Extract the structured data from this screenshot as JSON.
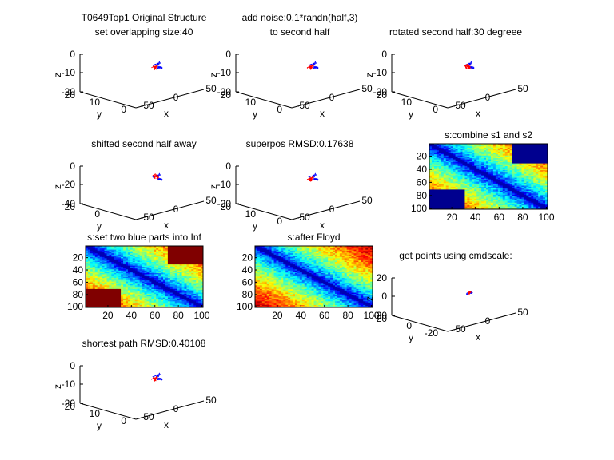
{
  "colors": {
    "chain_a": "#0000ff",
    "chain_b": "#ff0000",
    "axis": "#000000",
    "inf_block_high": "#800000",
    "inf_block_low": "#00008f"
  },
  "chart_data": [
    {
      "type": "scatter3d",
      "title": [
        "T0649Top1 Original Structure",
        "set overlapping size:40"
      ],
      "xlabel": "x",
      "ylabel": "y",
      "zlabel": "z",
      "xticks": [
        "-50",
        "0",
        "50"
      ],
      "yticks": [
        "0",
        "10",
        "20"
      ],
      "zticks": [
        "0",
        "-10",
        "-20"
      ],
      "series": [
        {
          "color": "#0000ff"
        },
        {
          "color": "#ff0000"
        }
      ],
      "points": 100,
      "seed": 3,
      "rotation": 0,
      "shift": 0,
      "noise": 0
    },
    {
      "type": "scatter3d",
      "title": [
        "add noise:0.1*randn(half,3)",
        "to second half"
      ],
      "xlabel": "x",
      "ylabel": "y",
      "zlabel": "z",
      "xticks": [
        "-50",
        "0",
        "50"
      ],
      "yticks": [
        "0",
        "10",
        "20"
      ],
      "zticks": [
        "0",
        "-10",
        "-20"
      ],
      "series": [
        {
          "color": "#0000ff"
        },
        {
          "color": "#ff0000"
        }
      ],
      "points": 100,
      "seed": 3,
      "rotation": 0,
      "shift": 0,
      "noise": 0.1
    },
    {
      "type": "scatter3d",
      "title": [
        "rotated second half:30 degreee"
      ],
      "xlabel": "x",
      "ylabel": "y",
      "zlabel": "z",
      "xticks": [
        "-50",
        "0",
        "50"
      ],
      "yticks": [
        "0",
        "10",
        "20"
      ],
      "zticks": [
        "0",
        "-10",
        "-20"
      ],
      "series": [
        {
          "color": "#0000ff"
        },
        {
          "color": "#ff0000"
        }
      ],
      "points": 100,
      "seed": 3,
      "rotation": 30,
      "shift": 0,
      "noise": 0.1
    },
    {
      "type": "scatter3d",
      "title": [
        "shifted second half away"
      ],
      "xlabel": "x",
      "ylabel": "y",
      "zlabel": "z",
      "xticks": [
        "-50",
        "0",
        "50"
      ],
      "yticks": [
        "0",
        "20"
      ],
      "zticks": [
        "0",
        "-20",
        "-40"
      ],
      "series": [
        {
          "color": "#0000ff"
        },
        {
          "color": "#ff0000"
        }
      ],
      "points": 100,
      "seed": 3,
      "rotation": 30,
      "shift": 1,
      "noise": 0.1
    },
    {
      "type": "scatter3d",
      "title": [
        "superpos RMSD:0.17638"
      ],
      "xlabel": "x",
      "ylabel": "y",
      "zlabel": "z",
      "xticks": [
        "-50",
        "0",
        "50"
      ],
      "yticks": [
        "0",
        "10",
        "20"
      ],
      "zticks": [
        "0",
        "-10",
        "-20"
      ],
      "series": [
        {
          "color": "#0000ff"
        },
        {
          "color": "#ff0000"
        }
      ],
      "points": 100,
      "seed": 3,
      "rotation": 0,
      "shift": 0,
      "noise": 0.1
    },
    {
      "type": "heatmap",
      "title": [
        "s:combine s1 and s2"
      ],
      "size": 100,
      "xticks": [
        "20",
        "40",
        "60",
        "80",
        "100"
      ],
      "yticks": [
        "20",
        "40",
        "60",
        "80",
        "100"
      ],
      "blocks": "low"
    },
    {
      "type": "heatmap",
      "title": [
        "s:set two blue parts into Inf"
      ],
      "size": 100,
      "xticks": [
        "20",
        "40",
        "60",
        "80",
        "100"
      ],
      "yticks": [
        "20",
        "40",
        "60",
        "80",
        "100"
      ],
      "blocks": "high"
    },
    {
      "type": "heatmap",
      "title": [
        "s:after Floyd"
      ],
      "size": 100,
      "xticks": [
        "20",
        "40",
        "60",
        "80",
        "100"
      ],
      "yticks": [
        "20",
        "40",
        "60",
        "80",
        "100"
      ],
      "blocks": "none"
    },
    {
      "type": "scatter3d",
      "title": [
        "get points using cmdscale:"
      ],
      "xlabel": "x",
      "ylabel": "y",
      "zlabel": "z",
      "xticks": [
        "-50",
        "0",
        "50"
      ],
      "yticks": [
        "-20",
        "0",
        "20"
      ],
      "zticks": [
        "20",
        "0",
        "-20"
      ],
      "series": [
        {
          "color": "#0000ff"
        },
        {
          "color": "#ff0000"
        }
      ],
      "points": 100,
      "seed": 7,
      "rotation": 60,
      "shift": 0,
      "noise": 0.1,
      "scale": 0.6
    },
    {
      "type": "scatter3d",
      "title": [
        "shortest path RMSD:0.40108"
      ],
      "xlabel": "x",
      "ylabel": "y",
      "zlabel": "z",
      "xticks": [
        "-50",
        "0",
        "50"
      ],
      "yticks": [
        "0",
        "10",
        "20"
      ],
      "zticks": [
        "0",
        "-10",
        "-20"
      ],
      "series": [
        {
          "color": "#0000ff"
        },
        {
          "color": "#ff0000"
        }
      ],
      "points": 100,
      "seed": 3,
      "rotation": 0,
      "shift": 0,
      "noise": 0.05
    }
  ]
}
